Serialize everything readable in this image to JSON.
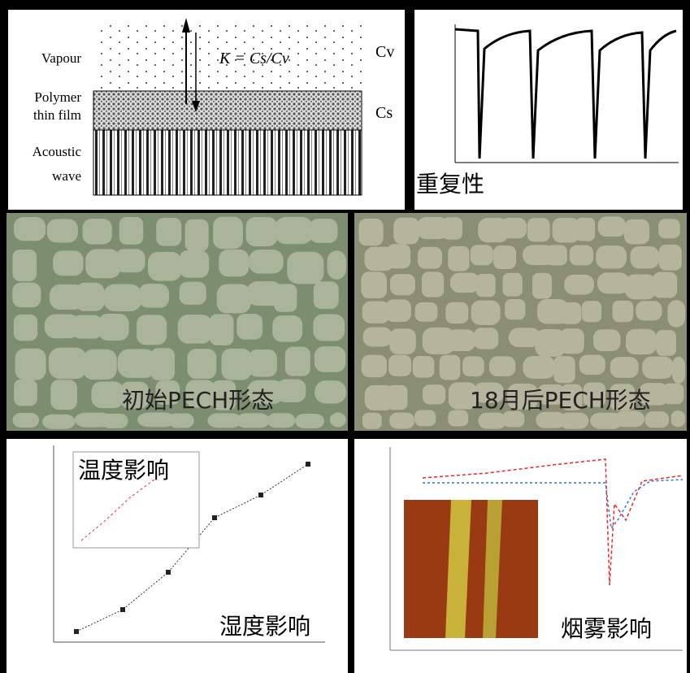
{
  "panels": {
    "sensor_diagram": {
      "vapour": "Vapour",
      "polymer_1": "Polymer",
      "polymer_2": "thin film",
      "acoustic_1": "Acoustic",
      "acoustic_2": "wave",
      "equation": "K = Cs/Cv",
      "vapour_conc": "Cv",
      "film_conc": "Cs"
    },
    "repeatability": {
      "label": "重复性"
    },
    "initial_morphology": {
      "label": "初始PECH形态"
    },
    "aged_morphology": {
      "label": "18月后PECH形态"
    },
    "temperature": {
      "label": "温度影响"
    },
    "humidity": {
      "label": "湿度影响"
    },
    "smoke": {
      "label": "烟雾影响"
    }
  }
}
